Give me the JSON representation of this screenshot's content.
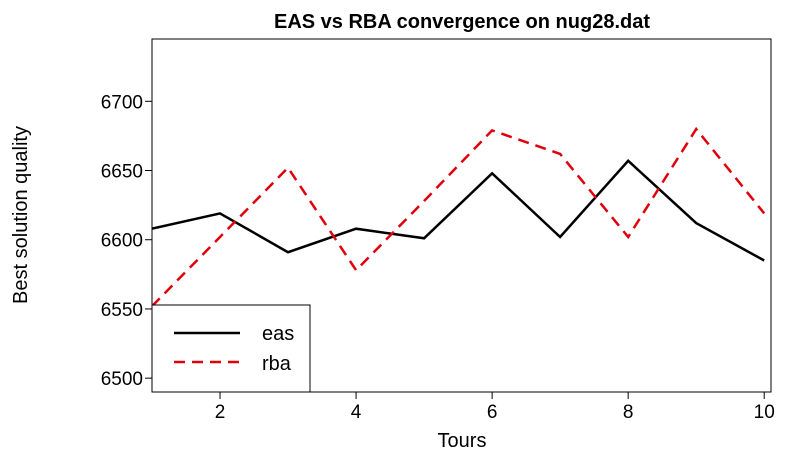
{
  "chart_data": {
    "type": "line",
    "title": "EAS vs RBA convergence on nug28.dat",
    "xlabel": "Tours",
    "ylabel": "Best solution quality",
    "x": [
      1,
      2,
      3,
      4,
      5,
      6,
      7,
      8,
      9,
      10
    ],
    "xlim": [
      1,
      10.1
    ],
    "ylim": [
      6490,
      6745
    ],
    "xticks": [
      2,
      4,
      6,
      8,
      10
    ],
    "yticks": [
      6500,
      6550,
      6600,
      6650,
      6700
    ],
    "grid": false,
    "legend_position": "bottom-left",
    "series": [
      {
        "name": "eas",
        "values": [
          6608,
          6619,
          6591,
          6608,
          6601,
          6648,
          6602,
          6657,
          6612,
          6585
        ],
        "color": "#000000",
        "dash": "solid"
      },
      {
        "name": "rba",
        "values": [
          6552,
          6602,
          6652,
          6578,
          6628,
          6679,
          6662,
          6602,
          6680,
          6619
        ],
        "color": "#e0000c",
        "dash": "dashed"
      }
    ]
  }
}
